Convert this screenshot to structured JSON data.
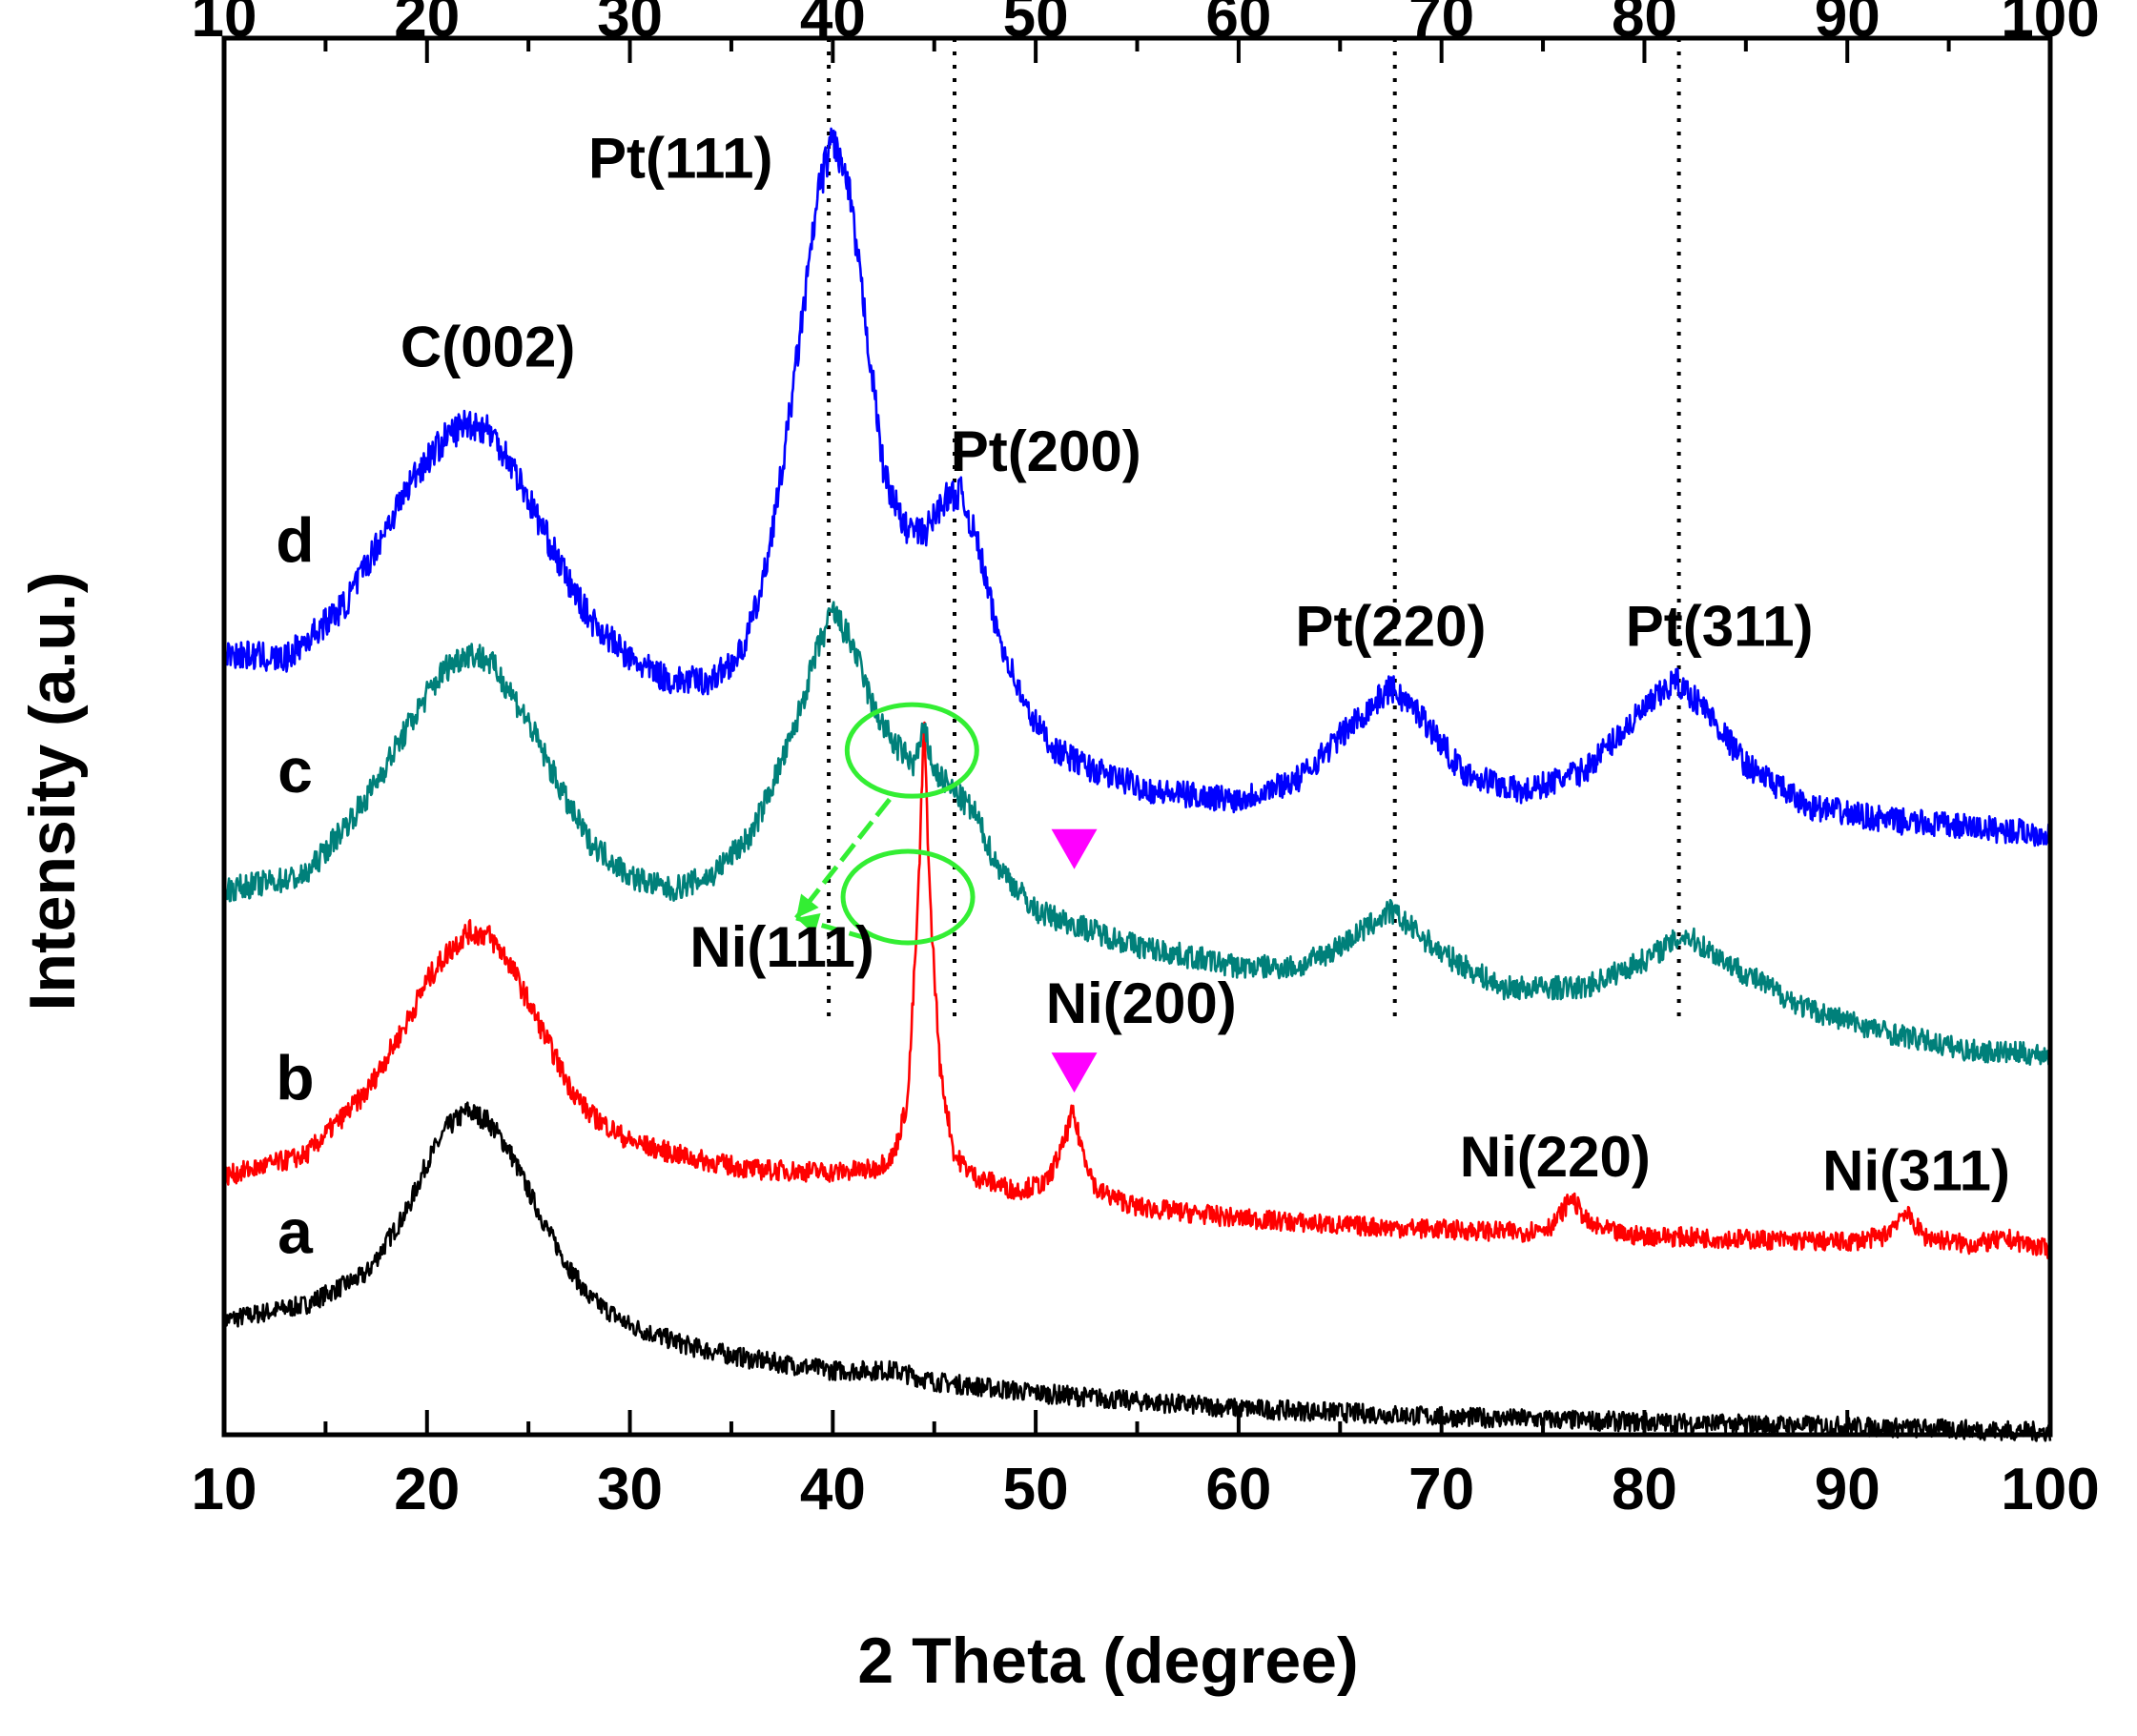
{
  "chart_data": {
    "type": "line",
    "title": "",
    "xlabel": "2 Theta (degree)",
    "ylabel": "Intensity (a.u.)",
    "xlim": [
      10,
      100
    ],
    "ylim": [
      0,
      10
    ],
    "x_ticks": [
      "10",
      "20",
      "30",
      "40",
      "50",
      "60",
      "70",
      "80",
      "90",
      "100"
    ],
    "grid": false,
    "series": [
      {
        "name": "a",
        "color": "#000000",
        "points": [
          [
            10,
            0.82
          ],
          [
            14,
            0.93
          ],
          [
            17,
            1.15
          ],
          [
            19,
            1.6
          ],
          [
            20,
            1.95
          ],
          [
            21,
            2.2
          ],
          [
            22,
            2.32
          ],
          [
            23,
            2.25
          ],
          [
            24,
            2.05
          ],
          [
            25,
            1.75
          ],
          [
            26,
            1.45
          ],
          [
            27,
            1.2
          ],
          [
            28,
            0.98
          ],
          [
            30,
            0.78
          ],
          [
            33,
            0.63
          ],
          [
            36,
            0.54
          ],
          [
            40,
            0.46
          ],
          [
            43,
            0.46
          ],
          [
            45,
            0.38
          ],
          [
            50,
            0.3
          ],
          [
            55,
            0.24
          ],
          [
            60,
            0.19
          ],
          [
            70,
            0.13
          ],
          [
            80,
            0.09
          ],
          [
            90,
            0.06
          ],
          [
            100,
            0.02
          ]
        ]
      },
      {
        "name": "b",
        "color": "#ff0000",
        "points": [
          [
            10,
            1.85
          ],
          [
            14,
            2.0
          ],
          [
            17,
            2.45
          ],
          [
            19,
            2.95
          ],
          [
            20,
            3.25
          ],
          [
            21,
            3.45
          ],
          [
            22,
            3.6
          ],
          [
            23,
            3.58
          ],
          [
            24,
            3.4
          ],
          [
            25,
            3.1
          ],
          [
            26,
            2.8
          ],
          [
            27,
            2.5
          ],
          [
            28,
            2.3
          ],
          [
            30,
            2.1
          ],
          [
            33,
            1.98
          ],
          [
            36,
            1.9
          ],
          [
            40,
            1.88
          ],
          [
            42,
            1.9
          ],
          [
            43,
            2.0
          ],
          [
            43.7,
            2.4
          ],
          [
            44.2,
            3.8
          ],
          [
            44.5,
            5.1
          ],
          [
            44.8,
            3.8
          ],
          [
            45.3,
            2.6
          ],
          [
            46,
            2.0
          ],
          [
            47,
            1.85
          ],
          [
            49,
            1.75
          ],
          [
            50.5,
            1.8
          ],
          [
            51.3,
            2.05
          ],
          [
            51.8,
            2.3
          ],
          [
            52.3,
            2.05
          ],
          [
            53,
            1.75
          ],
          [
            55,
            1.63
          ],
          [
            60,
            1.55
          ],
          [
            65,
            1.5
          ],
          [
            70,
            1.47
          ],
          [
            74,
            1.45
          ],
          [
            75.5,
            1.5
          ],
          [
            76.4,
            1.7
          ],
          [
            77.3,
            1.5
          ],
          [
            79,
            1.43
          ],
          [
            85,
            1.4
          ],
          [
            90,
            1.38
          ],
          [
            91.8,
            1.42
          ],
          [
            92.8,
            1.6
          ],
          [
            93.8,
            1.42
          ],
          [
            96,
            1.36
          ],
          [
            98,
            1.4
          ],
          [
            100,
            1.32
          ]
        ]
      },
      {
        "name": "c",
        "color": "#00807a",
        "points": [
          [
            10,
            3.9
          ],
          [
            14,
            4.0
          ],
          [
            17,
            4.55
          ],
          [
            19,
            5.05
          ],
          [
            20,
            5.3
          ],
          [
            21,
            5.5
          ],
          [
            22,
            5.6
          ],
          [
            23,
            5.55
          ],
          [
            24,
            5.35
          ],
          [
            25,
            5.1
          ],
          [
            26,
            4.8
          ],
          [
            27,
            4.5
          ],
          [
            28,
            4.25
          ],
          [
            30,
            4.0
          ],
          [
            32,
            3.9
          ],
          [
            34,
            4.0
          ],
          [
            36,
            4.3
          ],
          [
            38,
            5.0
          ],
          [
            39.2,
            5.6
          ],
          [
            40,
            5.9
          ],
          [
            41,
            5.65
          ],
          [
            42,
            5.2
          ],
          [
            43,
            4.95
          ],
          [
            44,
            4.8
          ],
          [
            44.5,
            5.05
          ],
          [
            45,
            4.75
          ],
          [
            46,
            4.6
          ],
          [
            47,
            4.45
          ],
          [
            48,
            4.1
          ],
          [
            50,
            3.75
          ],
          [
            52,
            3.65
          ],
          [
            55,
            3.5
          ],
          [
            60,
            3.35
          ],
          [
            63,
            3.35
          ],
          [
            65,
            3.5
          ],
          [
            67.5,
            3.75
          ],
          [
            70,
            3.45
          ],
          [
            73,
            3.2
          ],
          [
            77,
            3.2
          ],
          [
            80,
            3.4
          ],
          [
            82,
            3.58
          ],
          [
            85,
            3.3
          ],
          [
            88,
            3.05
          ],
          [
            92,
            2.88
          ],
          [
            96,
            2.75
          ],
          [
            100,
            2.72
          ]
        ]
      },
      {
        "name": "d",
        "color": "#0000ff",
        "points": [
          [
            10,
            5.6
          ],
          [
            13,
            5.55
          ],
          [
            16,
            5.95
          ],
          [
            18,
            6.5
          ],
          [
            19.5,
            6.9
          ],
          [
            21,
            7.15
          ],
          [
            22,
            7.25
          ],
          [
            23,
            7.2
          ],
          [
            24,
            7.0
          ],
          [
            25,
            6.7
          ],
          [
            26,
            6.4
          ],
          [
            27,
            6.1
          ],
          [
            28,
            5.85
          ],
          [
            30,
            5.55
          ],
          [
            32,
            5.4
          ],
          [
            34,
            5.4
          ],
          [
            35.5,
            5.6
          ],
          [
            36.5,
            6.05
          ],
          [
            37.5,
            6.9
          ],
          [
            38.5,
            8.0
          ],
          [
            39.3,
            8.9
          ],
          [
            40,
            9.3
          ],
          [
            40.8,
            8.9
          ],
          [
            41.6,
            8.0
          ],
          [
            42.5,
            6.9
          ],
          [
            43.5,
            6.5
          ],
          [
            44.5,
            6.45
          ],
          [
            45.5,
            6.7
          ],
          [
            46.3,
            6.75
          ],
          [
            47.2,
            6.35
          ],
          [
            48,
            5.8
          ],
          [
            49.5,
            5.2
          ],
          [
            51,
            4.9
          ],
          [
            53,
            4.75
          ],
          [
            56,
            4.6
          ],
          [
            60,
            4.55
          ],
          [
            63,
            4.7
          ],
          [
            65,
            5.0
          ],
          [
            67.5,
            5.35
          ],
          [
            69,
            5.15
          ],
          [
            71,
            4.75
          ],
          [
            74,
            4.6
          ],
          [
            77,
            4.75
          ],
          [
            79,
            5.05
          ],
          [
            81.5,
            5.4
          ],
          [
            83,
            5.2
          ],
          [
            85,
            4.8
          ],
          [
            88,
            4.5
          ],
          [
            92,
            4.4
          ],
          [
            96,
            4.35
          ],
          [
            100,
            4.3
          ]
        ]
      }
    ],
    "series_labels": [
      {
        "text": "a",
        "x": 13.5,
        "y": 1.3
      },
      {
        "text": "b",
        "x": 13.5,
        "y": 2.4
      },
      {
        "text": "c",
        "x": 13.5,
        "y": 4.6
      },
      {
        "text": "d",
        "x": 13.5,
        "y": 6.25
      }
    ],
    "annotations": [
      {
        "text": "Pt(111)",
        "x": 32.5,
        "y": 9.0
      },
      {
        "text": "C(002)",
        "x": 23,
        "y": 7.65
      },
      {
        "text": "Pt(200)",
        "x": 50.5,
        "y": 6.9
      },
      {
        "text": "Pt(220)",
        "x": 67.5,
        "y": 5.65
      },
      {
        "text": "Pt(311)",
        "x": 83.7,
        "y": 5.65
      },
      {
        "text": "Ni(111)",
        "x": 37.5,
        "y": 3.35
      },
      {
        "text": "Ni(200)",
        "x": 55.2,
        "y": 2.95
      },
      {
        "text": "Ni(220)",
        "x": 75.6,
        "y": 1.85
      },
      {
        "text": "Ni(311)",
        "x": 93.4,
        "y": 1.75
      }
    ],
    "reference_lines_x": [
      39.8,
      46.0,
      67.7,
      81.7
    ],
    "ni_markers_x": [
      51.9
    ],
    "ni_markers_y": [
      4.2,
      2.6
    ],
    "highlight_circles": [
      {
        "x": 43.9,
        "y": 4.9
      },
      {
        "x": 43.7,
        "y": 3.85
      }
    ],
    "colors": {
      "marker": "#ff00ff",
      "circle": "#33ee33",
      "axis": "#000000"
    }
  }
}
